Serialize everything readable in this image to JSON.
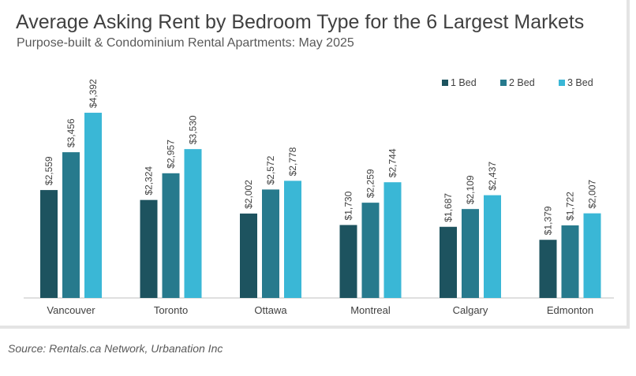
{
  "title": "Average Asking Rent by Bedroom Type for the 6 Largest Markets",
  "subtitle": "Purpose-built & Condominium Rental Apartments: May 2025",
  "source": "Source: Rentals.ca Network, Urbanation Inc",
  "chart_data": {
    "type": "bar",
    "categories": [
      "Vancouver",
      "Toronto",
      "Ottawa",
      "Montreal",
      "Calgary",
      "Edmonton"
    ],
    "series": [
      {
        "name": "1 Bed",
        "color": "#1d535f",
        "values": [
          2559,
          2324,
          2002,
          1730,
          1687,
          1379
        ],
        "labels": [
          "$2,559",
          "$2,324",
          "$2,002",
          "$1,730",
          "$1,687",
          "$1,379"
        ]
      },
      {
        "name": "2 Bed",
        "color": "#277a8d",
        "values": [
          3456,
          2957,
          2572,
          2259,
          2109,
          1722
        ],
        "labels": [
          "$3,456",
          "$2,957",
          "$2,572",
          "$2,259",
          "$2,109",
          "$1,722"
        ]
      },
      {
        "name": "3 Bed",
        "color": "#3ab7d6",
        "values": [
          4392,
          3530,
          2778,
          2744,
          2437,
          2007
        ],
        "labels": [
          "$4,392",
          "$3,530",
          "$2,778",
          "$2,744",
          "$2,437",
          "$2,007"
        ]
      }
    ],
    "ylim": [
      0,
      4600
    ],
    "grid": false,
    "legend": "top-right",
    "xlabel": "",
    "ylabel": ""
  }
}
